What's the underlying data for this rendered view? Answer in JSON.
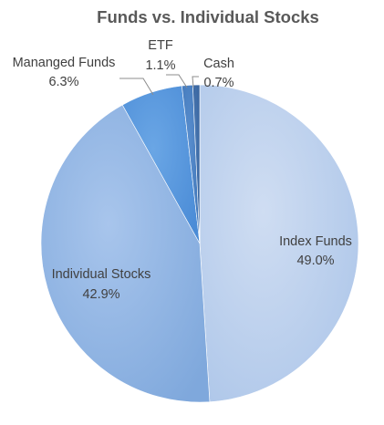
{
  "chart_data": {
    "type": "pie",
    "title": "Funds vs. Individual Stocks",
    "slices": [
      {
        "label": "Index Funds",
        "value": 49.0,
        "display": "49.0%",
        "color": "#bfd3ee"
      },
      {
        "label": "Individual Stocks",
        "value": 42.9,
        "display": "42.9%",
        "color": "#97b9e5"
      },
      {
        "label": "Mananged Funds",
        "value": 6.3,
        "display": "6.3%",
        "color": "#5f9ddf"
      },
      {
        "label": "ETF",
        "value": 1.1,
        "display": "1.1%",
        "color": "#4c82c4"
      },
      {
        "label": "Cash",
        "value": 0.7,
        "display": "0.7%",
        "color": "#3f6ea8"
      }
    ],
    "legend": "none",
    "start_angle": "12 o'clock",
    "direction": "clockwise"
  }
}
